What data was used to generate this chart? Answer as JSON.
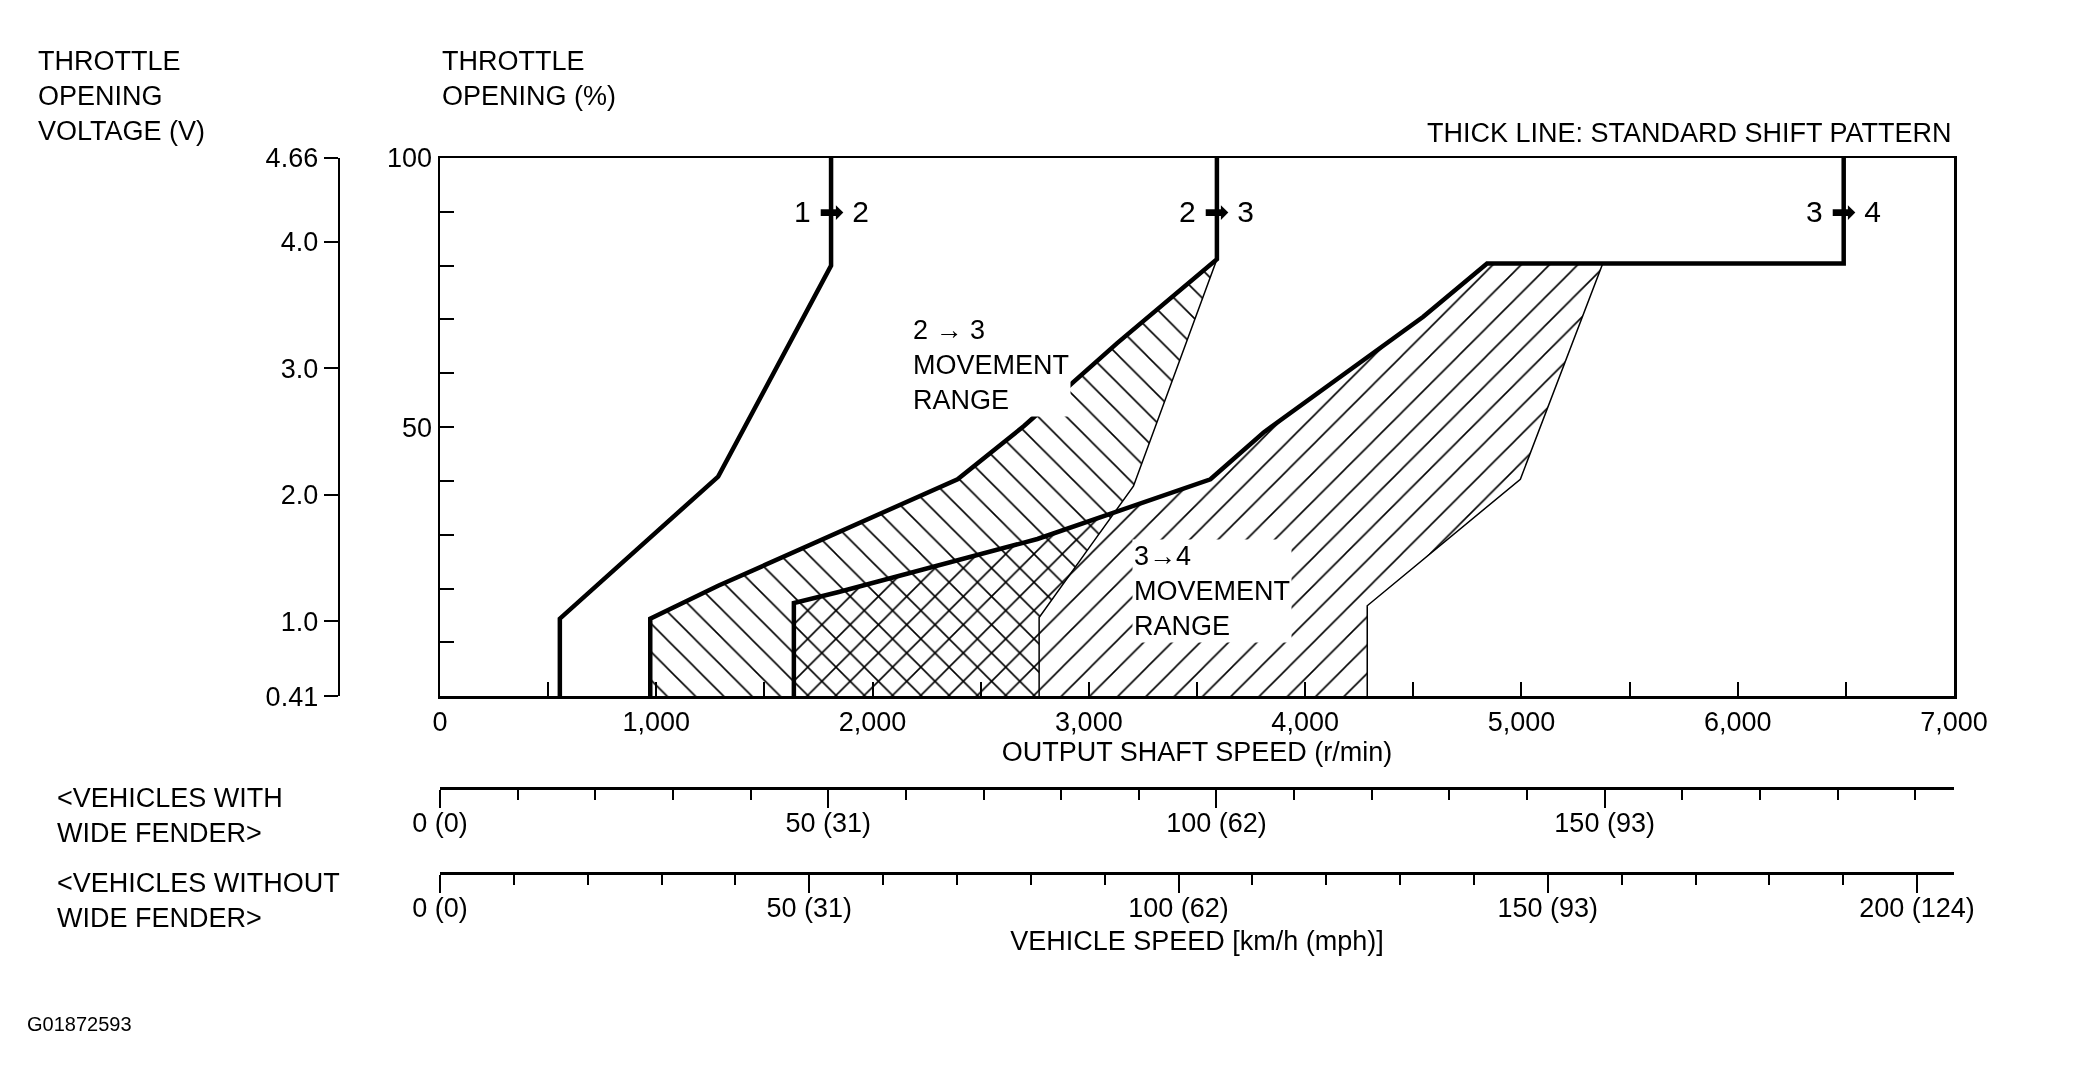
{
  "chart_data": [
    {
      "type": "line",
      "xlabel": "OUTPUT SHAFT SPEED (r/min)",
      "ylabel": "THROTTLE\nOPENING (%)",
      "y2label": "THROTTLE\nOPENING\nVOLTAGE (V)",
      "xlim": [
        0,
        7000
      ],
      "xticks": [
        0,
        {
          "value": 500,
          "label": null
        },
        {
          "value": 1000,
          "label": "1,000"
        },
        {
          "value": 1500,
          "label": null
        },
        {
          "value": 2000,
          "label": "2,000"
        },
        {
          "value": 2500,
          "label": null
        },
        {
          "value": 3000,
          "label": "3,000"
        },
        {
          "value": 3500,
          "label": null
        },
        {
          "value": 4000,
          "label": "4,000"
        },
        {
          "value": 4500,
          "label": null
        },
        {
          "value": 5000,
          "label": "5,000"
        },
        {
          "value": 5500,
          "label": null
        },
        {
          "value": 6000,
          "label": "6,000"
        },
        {
          "value": 6500,
          "label": null
        },
        {
          "value": 7000,
          "label": "7,000"
        }
      ],
      "ylim": [
        0,
        100
      ],
      "yticks": [
        {
          "value": 10,
          "label": null
        },
        {
          "value": 20,
          "label": null
        },
        {
          "value": 30,
          "label": null
        },
        {
          "value": 40,
          "label": null
        },
        50,
        {
          "value": 60,
          "label": null
        },
        {
          "value": 70,
          "label": null
        },
        {
          "value": 80,
          "label": null
        },
        {
          "value": 90,
          "label": null
        },
        100
      ],
      "y2lim": [
        0.41,
        4.66
      ],
      "y2ticks": [
        0.41,
        {
          "value": 1,
          "label": "1.0"
        },
        {
          "value": 2,
          "label": "2.0"
        },
        {
          "value": 3,
          "label": "3.0"
        },
        {
          "value": 4,
          "label": "4.0"
        },
        4.66
      ],
      "grid": false,
      "series": [
        {
          "type": "area",
          "color": "#000000",
          "x": [
            972,
            972,
            1286,
            2393,
            2700,
            3131,
            3592,
            3206,
            3014,
            2770,
            2770
          ],
          "values": [
            0,
            14.4,
            20.5,
            40.3,
            50.2,
            65.6,
            81.2,
            39,
            28.3,
            14.6,
            0
          ]
        },
        {
          "type": "area",
          "color": "#000000",
          "x": [
            1636,
            1636,
            1839,
            2762,
            3562,
            3808,
            4546,
            4841,
            5376,
            4995,
            4287,
            4287
          ],
          "values": [
            0,
            17.3,
            19.3,
            29.2,
            40.3,
            49,
            70.5,
            80.4,
            80.4,
            40.3,
            16.8,
            0
          ]
        },
        {
          "type": "line",
          "color": "#000000",
          "x": [
            554,
            554,
            1286,
            1808,
            1808
          ],
          "values": [
            0,
            14.4,
            40.8,
            80,
            100
          ]
        },
        {
          "type": "line",
          "color": "#000000",
          "x": [
            972,
            972,
            1286,
            2393,
            2700,
            3131,
            3592,
            3592
          ],
          "values": [
            0,
            14.4,
            20.5,
            40.3,
            50.2,
            65.6,
            81.2,
            100
          ]
        },
        {
          "type": "line",
          "color": "#000000",
          "x": [
            1636,
            1636,
            1839,
            2762,
            3562,
            3808,
            4546,
            4841,
            6490,
            6490
          ],
          "values": [
            0,
            17.3,
            19.3,
            29.2,
            40.3,
            49,
            70.5,
            80.4,
            80.4,
            100
          ]
        }
      ],
      "annotations": [
        "THICK LINE: STANDARD SHIFT PATTERN",
        "G01872593",
        "2 → 3\nMOVEMENT\nRANGE",
        "3→4\nMOVEMENT\nRANGE",
        {
          "text": "1 ➡ 2",
          "x": 1808,
          "y": 90
        },
        {
          "text": "2 ➡ 3",
          "x": 3592,
          "y": 90
        },
        {
          "text": "3 ➡ 4",
          "x": 6490,
          "y": 90
        }
      ]
    },
    {
      "type": "other",
      "ylabel": "<VEHICLES WITH\nWIDE FENDER>",
      "categories": [
        "0 (0)",
        null,
        null,
        null,
        null,
        "50 (31)",
        null,
        null,
        null,
        null,
        "100 (62)",
        null,
        null,
        null,
        null,
        "150 (93)",
        null,
        null,
        null,
        null
      ]
    },
    {
      "type": "other",
      "ylabel": "<VEHICLES WITHOUT\nWIDE FENDER>",
      "xlabel": "VEHICLE SPEED [km/h (mph)]",
      "categories": [
        "0 (0)",
        null,
        null,
        null,
        null,
        "50 (31)",
        null,
        null,
        null,
        null,
        "100 (62)",
        null,
        null,
        null,
        null,
        "150 (93)",
        null,
        null,
        null,
        null,
        "200 (124)"
      ]
    }
  ]
}
